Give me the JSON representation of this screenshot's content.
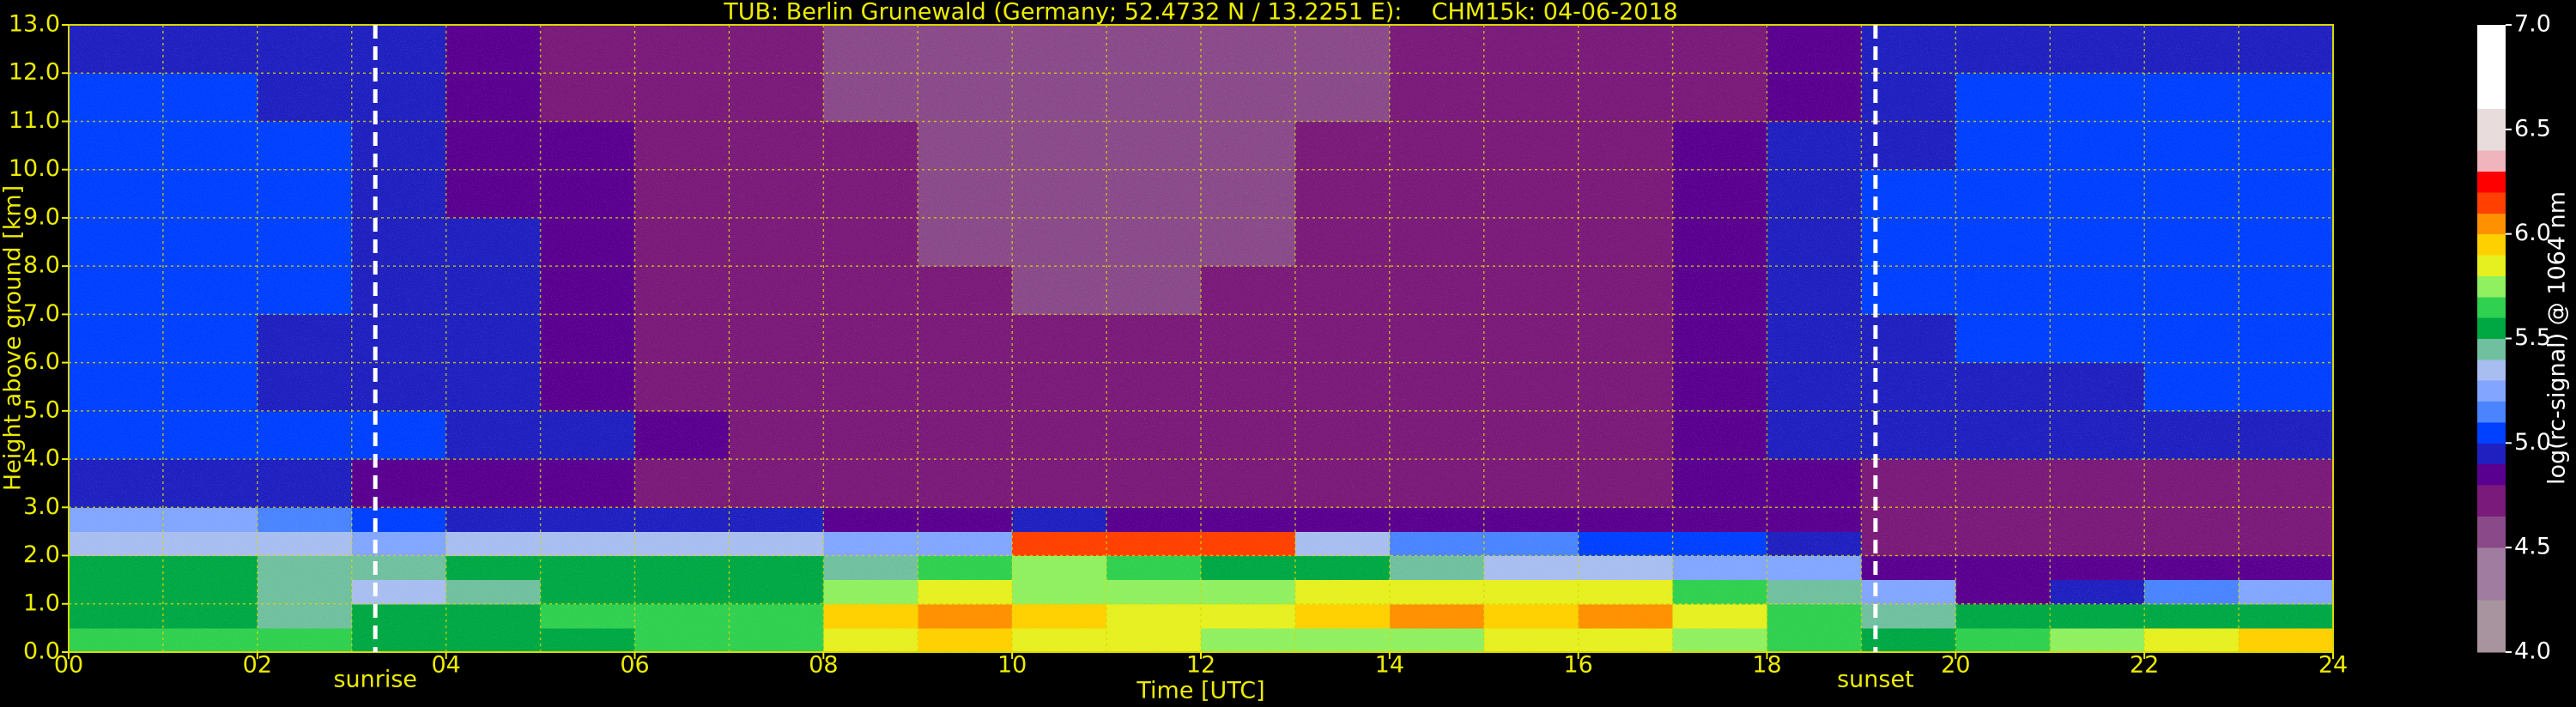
{
  "chart_data": {
    "type": "heatmap",
    "title": "TUB: Berlin Grunewald (Germany; 52.4732 N / 13.2251 E):    CHM15k: 04-06-2018",
    "x_label": "Time [UTC]",
    "y_label": "Height above ground [km]",
    "xlim": [
      0,
      24
    ],
    "ylim": [
      0,
      13
    ],
    "xticks": [
      {
        "value": 0,
        "label": "00"
      },
      {
        "value": 2,
        "label": "02"
      },
      {
        "value": 4,
        "label": "04"
      },
      {
        "value": 6,
        "label": "06"
      },
      {
        "value": 8,
        "label": "08"
      },
      {
        "value": 10,
        "label": "10"
      },
      {
        "value": 12,
        "label": "12"
      },
      {
        "value": 14,
        "label": "14"
      },
      {
        "value": 16,
        "label": "16"
      },
      {
        "value": 18,
        "label": "18"
      },
      {
        "value": 20,
        "label": "20"
      },
      {
        "value": 22,
        "label": "22"
      },
      {
        "value": 24,
        "label": "24"
      }
    ],
    "xminorticks": [
      1,
      3,
      5,
      7,
      9,
      11,
      13,
      15,
      17,
      19,
      21,
      23
    ],
    "yticks": [
      {
        "value": 0,
        "label": "0.0"
      },
      {
        "value": 1,
        "label": "1.0"
      },
      {
        "value": 2,
        "label": "2.0"
      },
      {
        "value": 3,
        "label": "3.0"
      },
      {
        "value": 4,
        "label": "4.0"
      },
      {
        "value": 5,
        "label": "5.0"
      },
      {
        "value": 6,
        "label": "6.0"
      },
      {
        "value": 7,
        "label": "7.0"
      },
      {
        "value": 8,
        "label": "8.0"
      },
      {
        "value": 9,
        "label": "9.0"
      },
      {
        "value": 10,
        "label": "10.0"
      },
      {
        "value": 11,
        "label": "11.0"
      },
      {
        "value": 12,
        "label": "12.0"
      },
      {
        "value": 13,
        "label": "13.0"
      }
    ],
    "grid": true,
    "grid_color": "#d8d800",
    "annotations": [
      {
        "text": "sunrise",
        "x": 3.25
      },
      {
        "text": "sunset",
        "x": 19.15
      }
    ],
    "x_edges": [
      0,
      1,
      2,
      3,
      4,
      5,
      6,
      7,
      8,
      9,
      10,
      11,
      12,
      13,
      14,
      15,
      16,
      17,
      18,
      19,
      20,
      21,
      22,
      23,
      24
    ],
    "y_edges": [
      0,
      0.5,
      1,
      1.5,
      2,
      2.5,
      3,
      4,
      5,
      6,
      7,
      8,
      9,
      10,
      11,
      12,
      13
    ],
    "z": [
      [
        5.6,
        5.6,
        5.6,
        5.55,
        5.55,
        5.55,
        5.6,
        5.65,
        5.8,
        5.9,
        5.85,
        5.8,
        5.75,
        5.7,
        5.75,
        5.8,
        5.85,
        5.75,
        5.6,
        5.55,
        5.6,
        5.75,
        5.85,
        5.9
      ],
      [
        5.5,
        5.55,
        5.45,
        5.5,
        5.55,
        5.6,
        5.6,
        5.65,
        5.95,
        6.05,
        5.9,
        5.85,
        5.8,
        5.9,
        6.0,
        5.95,
        6.05,
        5.85,
        5.6,
        5.4,
        5.5,
        5.55,
        5.5,
        5.5
      ],
      [
        5.55,
        5.5,
        5.4,
        5.35,
        5.45,
        5.55,
        5.55,
        5.5,
        5.75,
        5.8,
        5.75,
        5.7,
        5.75,
        5.85,
        5.8,
        5.85,
        5.8,
        5.6,
        5.4,
        5.2,
        4.85,
        4.9,
        5.15,
        5.2
      ],
      [
        5.55,
        5.5,
        5.45,
        5.45,
        5.5,
        5.55,
        5.55,
        5.5,
        5.45,
        5.6,
        5.7,
        5.65,
        5.55,
        5.5,
        5.4,
        5.35,
        5.3,
        5.25,
        5.2,
        4.85,
        4.8,
        4.8,
        4.85,
        4.8
      ],
      [
        5.3,
        5.35,
        5.3,
        5.25,
        5.3,
        5.3,
        5.3,
        5.3,
        5.2,
        5.25,
        6.1,
        6.15,
        6.15,
        5.3,
        5.15,
        5.1,
        5.05,
        5.0,
        4.95,
        4.75,
        4.7,
        4.7,
        4.75,
        4.7
      ],
      [
        5.25,
        5.2,
        5.15,
        5.0,
        4.95,
        4.95,
        4.95,
        4.9,
        4.85,
        4.85,
        4.9,
        4.85,
        4.85,
        4.85,
        4.8,
        4.8,
        4.85,
        4.85,
        4.8,
        4.7,
        4.65,
        4.65,
        4.65,
        4.65
      ],
      [
        4.9,
        4.9,
        4.9,
        4.85,
        4.85,
        4.8,
        4.75,
        4.7,
        4.7,
        4.7,
        4.7,
        4.7,
        4.7,
        4.7,
        4.7,
        4.7,
        4.75,
        4.8,
        4.8,
        4.75,
        4.7,
        4.7,
        4.7,
        4.7
      ],
      [
        5.0,
        5.0,
        5.0,
        5.0,
        4.95,
        4.9,
        4.8,
        4.7,
        4.7,
        4.7,
        4.7,
        4.7,
        4.7,
        4.7,
        4.7,
        4.7,
        4.75,
        4.85,
        4.9,
        4.95,
        4.95,
        4.95,
        4.95,
        4.95
      ],
      [
        5.0,
        5.0,
        4.95,
        4.95,
        4.9,
        4.85,
        4.75,
        4.7,
        4.7,
        4.65,
        4.65,
        4.65,
        4.65,
        4.7,
        4.7,
        4.7,
        4.75,
        4.85,
        4.9,
        4.95,
        4.95,
        4.95,
        5.0,
        5.0
      ],
      [
        5.05,
        5.0,
        4.95,
        4.95,
        4.9,
        4.85,
        4.75,
        4.7,
        4.7,
        4.65,
        4.65,
        4.65,
        4.65,
        4.7,
        4.7,
        4.7,
        4.75,
        4.85,
        4.9,
        4.95,
        5.0,
        5.0,
        5.0,
        5.0
      ],
      [
        5.05,
        5.05,
        5.0,
        4.95,
        4.9,
        4.85,
        4.75,
        4.7,
        4.65,
        4.65,
        4.6,
        4.6,
        4.65,
        4.65,
        4.7,
        4.7,
        4.75,
        4.85,
        4.9,
        5.0,
        5.0,
        5.0,
        5.05,
        5.05
      ],
      [
        5.05,
        5.05,
        5.0,
        4.95,
        4.9,
        4.8,
        4.75,
        4.7,
        4.65,
        4.6,
        4.6,
        4.6,
        4.6,
        4.65,
        4.7,
        4.7,
        4.75,
        4.8,
        4.9,
        5.0,
        5.0,
        5.05,
        5.05,
        5.05
      ],
      [
        5.05,
        5.05,
        5.0,
        4.95,
        4.85,
        4.8,
        4.7,
        4.7,
        4.65,
        4.6,
        4.55,
        4.55,
        4.6,
        4.65,
        4.65,
        4.7,
        4.7,
        4.8,
        4.9,
        5.0,
        5.05,
        5.05,
        5.05,
        5.05
      ],
      [
        5.0,
        5.0,
        5.0,
        4.95,
        4.85,
        4.8,
        4.7,
        4.65,
        4.65,
        4.6,
        4.55,
        4.55,
        4.6,
        4.65,
        4.65,
        4.7,
        4.7,
        4.8,
        4.9,
        4.95,
        5.0,
        5.0,
        5.0,
        5.0
      ],
      [
        5.0,
        5.0,
        4.95,
        4.9,
        4.85,
        4.75,
        4.7,
        4.65,
        4.6,
        4.6,
        4.55,
        4.55,
        4.6,
        4.6,
        4.65,
        4.65,
        4.7,
        4.75,
        4.85,
        4.95,
        5.0,
        5.0,
        5.0,
        5.0
      ],
      [
        4.95,
        4.95,
        4.95,
        4.9,
        4.8,
        4.75,
        4.7,
        4.65,
        4.6,
        4.6,
        4.55,
        4.55,
        4.6,
        4.6,
        4.65,
        4.65,
        4.7,
        4.75,
        4.85,
        4.9,
        4.95,
        4.95,
        4.95,
        4.95
      ]
    ],
    "colorbar": {
      "label": "log(rc-signal) @ 1064 nm",
      "lim": [
        4.0,
        7.0
      ],
      "ticks": [
        {
          "value": 4,
          "label": "4.0"
        },
        {
          "value": 4.5,
          "label": "4.5"
        },
        {
          "value": 5,
          "label": "5.0"
        },
        {
          "value": 5.5,
          "label": "5.5"
        },
        {
          "value": 6,
          "label": "6.0"
        },
        {
          "value": 6.5,
          "label": "6.5"
        },
        {
          "value": 7,
          "label": "7.0"
        }
      ],
      "bounds": [
        4.0,
        4.25,
        4.5,
        4.65,
        4.8,
        4.9,
        5.0,
        5.1,
        5.2,
        5.3,
        5.4,
        5.5,
        5.6,
        5.7,
        5.8,
        5.9,
        6.0,
        6.1,
        6.2,
        6.3,
        6.4,
        6.6,
        7.0
      ],
      "colors": [
        "#a8949e",
        "#a07ca0",
        "#8a4a8a",
        "#7a1a7a",
        "#5a0090",
        "#2020c0",
        "#0040ff",
        "#4a84ff",
        "#82a6ff",
        "#a8bef0",
        "#70c0a0",
        "#00a844",
        "#30d050",
        "#90f060",
        "#e6f020",
        "#ffd000",
        "#ff9000",
        "#ff4000",
        "#ff0000",
        "#f0b4bc",
        "#e8dcdc",
        "#ffffff"
      ]
    }
  }
}
